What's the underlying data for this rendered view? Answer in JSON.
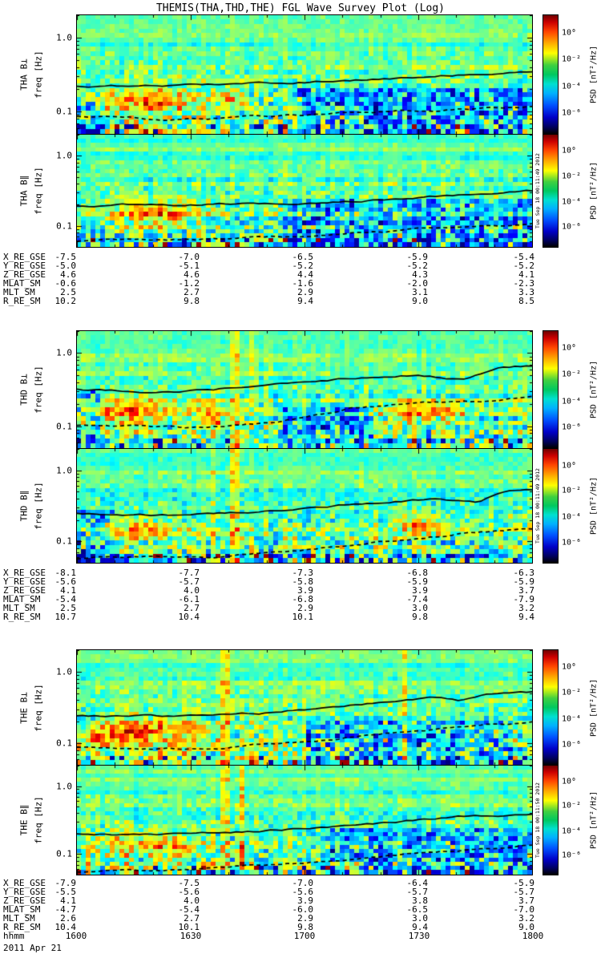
{
  "title": "THEMIS(THA,THD,THE) FGL Wave Survey Plot (Log)",
  "date_label": "2011 Apr 21",
  "freq_axis": {
    "label": "freq [Hz]",
    "ticks": [
      "1.0",
      "0.1"
    ]
  },
  "colorbar": {
    "label": "PSD [nT²/Hz]",
    "ticks": [
      "10⁰",
      "10⁻²",
      "10⁻⁴",
      "10⁻⁶"
    ]
  },
  "time_axis": {
    "label": "hhmm",
    "ticks": [
      "1600",
      "1630",
      "1700",
      "1730",
      "1800"
    ]
  },
  "timestamps": [
    "Tue Sep 18 00:11:49 2012",
    "Tue Sep 18 00:11:49 2012",
    "Tue Sep 18 00:11:50 2012"
  ],
  "groups": [
    {
      "sat": "THA",
      "ephemeris": [
        {
          "label": "X_RE_GSE",
          "values": [
            "-7.5",
            "-7.0",
            "-6.5",
            "-5.9",
            "-5.4"
          ]
        },
        {
          "label": "Y_RE_GSE",
          "values": [
            "-5.0",
            "-5.1",
            "-5.2",
            "-5.2",
            "-5.2"
          ]
        },
        {
          "label": "Z_RE_GSE",
          "values": [
            "4.6",
            "4.6",
            "4.4",
            "4.3",
            "4.1"
          ]
        },
        {
          "label": "MLAT_SM",
          "values": [
            "-0.6",
            "-1.2",
            "-1.6",
            "-2.0",
            "-2.3"
          ]
        },
        {
          "label": "MLT_SM",
          "values": [
            "2.5",
            "2.7",
            "2.9",
            "3.1",
            "3.3"
          ]
        },
        {
          "label": "R_RE_SM",
          "values": [
            "10.2",
            "9.8",
            "9.4",
            "9.0",
            "8.5"
          ]
        }
      ]
    },
    {
      "sat": "THD",
      "ephemeris": [
        {
          "label": "X_RE_GSE",
          "values": [
            "-8.1",
            "-7.7",
            "-7.3",
            "-6.8",
            "-6.3"
          ]
        },
        {
          "label": "Y_RE_GSE",
          "values": [
            "-5.6",
            "-5.7",
            "-5.8",
            "-5.9",
            "-5.9"
          ]
        },
        {
          "label": "Z_RE_GSE",
          "values": [
            "4.1",
            "4.0",
            "3.9",
            "3.9",
            "3.7"
          ]
        },
        {
          "label": "MLAT_SM",
          "values": [
            "-5.4",
            "-6.1",
            "-6.8",
            "-7.4",
            "-7.9"
          ]
        },
        {
          "label": "MLT_SM",
          "values": [
            "2.5",
            "2.7",
            "2.9",
            "3.0",
            "3.2"
          ]
        },
        {
          "label": "R_RE_SM",
          "values": [
            "10.7",
            "10.4",
            "10.1",
            "9.8",
            "9.4"
          ]
        }
      ]
    },
    {
      "sat": "THE",
      "ephemeris": [
        {
          "label": "X_RE_GSE",
          "values": [
            "-7.9",
            "-7.5",
            "-7.0",
            "-6.4",
            "-5.9"
          ]
        },
        {
          "label": "Y_RE_GSE",
          "values": [
            "-5.5",
            "-5.6",
            "-5.6",
            "-5.7",
            "-5.7"
          ]
        },
        {
          "label": "Z_RE_GSE",
          "values": [
            "4.1",
            "4.0",
            "3.9",
            "3.8",
            "3.7"
          ]
        },
        {
          "label": "MLAT_SM",
          "values": [
            "-4.7",
            "-5.4",
            "-6.0",
            "-6.5",
            "-7.0"
          ]
        },
        {
          "label": "MLT_SM",
          "values": [
            "2.6",
            "2.7",
            "2.9",
            "3.0",
            "3.2"
          ]
        },
        {
          "label": "R_RE_SM",
          "values": [
            "10.4",
            "10.1",
            "9.8",
            "9.4",
            "9.0"
          ]
        }
      ]
    }
  ],
  "chart_data": {
    "type": "heatmap",
    "subtype": "spectrogram",
    "title": "THEMIS(THA,THD,THE) FGL Wave Survey Plot (Log)",
    "x_axis": {
      "label": "hhmm",
      "date": "2011 Apr 21",
      "ticks": [
        "1600",
        "1630",
        "1700",
        "1730",
        "1800"
      ],
      "tick_interval_min": 30
    },
    "y_axis": {
      "label": "freq [Hz]",
      "scale": "log",
      "range_hz": [
        0.05,
        2.0
      ],
      "ticks": [
        1.0,
        0.1
      ]
    },
    "z_axis": {
      "label": "PSD [nT²/Hz]",
      "scale": "log",
      "ticks": [
        "10⁰",
        "10⁻²",
        "10⁻⁴",
        "10⁻⁶"
      ],
      "colormap": "rainbow"
    },
    "overlay_lines": {
      "solid": "black solid characteristic-frequency trace",
      "dashed": "black dashed characteristic-frequency trace"
    },
    "panels": [
      {
        "id": "tha-bperp",
        "label": "THA B⊥",
        "seed": 11,
        "solid": [
          [
            0,
            0.6
          ],
          [
            0.2,
            0.595
          ],
          [
            0.4,
            0.575
          ],
          [
            0.55,
            0.555
          ],
          [
            0.7,
            0.53
          ],
          [
            0.85,
            0.5
          ],
          [
            1,
            0.47
          ]
        ],
        "dashed": [
          [
            0,
            0.86
          ],
          [
            0.2,
            0.875
          ],
          [
            0.35,
            0.86
          ],
          [
            0.5,
            0.845
          ],
          [
            0.65,
            0.82
          ],
          [
            0.8,
            0.8
          ],
          [
            1,
            0.77
          ]
        ],
        "blobs": [
          {
            "x": 0.16,
            "y": 0.74,
            "w": 0.1,
            "h": 0.14,
            "amp": 0.3
          },
          {
            "x": 0.33,
            "y": 0.72,
            "w": 0.05,
            "h": 0.1,
            "amp": 0.18
          }
        ],
        "stripes": [],
        "dark": [
          {
            "x0": 0.48,
            "x1": 1,
            "y0": 0.62,
            "amp": 0.3
          },
          {
            "x0": 0,
            "x1": 0.06,
            "y0": 0.75,
            "amp": 0.3
          }
        ]
      },
      {
        "id": "tha-bpar",
        "label": "THA B∥",
        "seed": 12,
        "solid": [
          [
            0,
            0.63
          ],
          [
            0.3,
            0.62
          ],
          [
            0.5,
            0.61
          ],
          [
            0.7,
            0.57
          ],
          [
            0.85,
            0.53
          ],
          [
            1,
            0.5
          ]
        ],
        "dashed": [
          [
            0,
            0.95
          ],
          [
            0.3,
            0.93
          ],
          [
            0.5,
            0.9
          ],
          [
            0.7,
            0.86
          ],
          [
            0.85,
            0.82
          ],
          [
            1,
            0.79
          ]
        ],
        "blobs": [
          {
            "x": 0.17,
            "y": 0.72,
            "w": 0.09,
            "h": 0.12,
            "amp": 0.28
          }
        ],
        "stripes": [],
        "dark": [
          {
            "x0": 0.45,
            "x1": 1,
            "y0": 0.6,
            "amp": 0.3
          }
        ]
      },
      {
        "id": "thd-bperp",
        "label": "THD B⊥",
        "seed": 21,
        "solid": [
          [
            0,
            0.5
          ],
          [
            0.15,
            0.52
          ],
          [
            0.3,
            0.5
          ],
          [
            0.45,
            0.44
          ],
          [
            0.6,
            0.4
          ],
          [
            0.75,
            0.37
          ],
          [
            0.85,
            0.41
          ],
          [
            0.93,
            0.3
          ],
          [
            1,
            0.29
          ]
        ],
        "dashed": [
          [
            0,
            0.8
          ],
          [
            0.25,
            0.83
          ],
          [
            0.45,
            0.78
          ],
          [
            0.6,
            0.66
          ],
          [
            0.75,
            0.61
          ],
          [
            0.9,
            0.6
          ],
          [
            1,
            0.56
          ]
        ],
        "blobs": [
          {
            "x": 0.1,
            "y": 0.7,
            "w": 0.1,
            "h": 0.14,
            "amp": 0.28
          },
          {
            "x": 0.75,
            "y": 0.7,
            "w": 0.08,
            "h": 0.1,
            "amp": 0.3
          },
          {
            "x": 0.3,
            "y": 0.75,
            "w": 0.04,
            "h": 0.2,
            "amp": 0.2
          }
        ],
        "stripes": [
          {
            "x": 0.345,
            "w": 0.012,
            "amp": 0.2
          },
          {
            "x": 0.385,
            "w": 0.008,
            "amp": 0.15
          }
        ],
        "dark": [
          {
            "x0": 0,
            "x1": 0.05,
            "y0": 0.5,
            "amp": 0.3
          },
          {
            "x0": 0.45,
            "x1": 0.65,
            "y0": 0.65,
            "amp": 0.25
          }
        ]
      },
      {
        "id": "thd-bpar",
        "label": "THD B∥",
        "seed": 22,
        "solid": [
          [
            0,
            0.56
          ],
          [
            0.2,
            0.58
          ],
          [
            0.4,
            0.55
          ],
          [
            0.55,
            0.5
          ],
          [
            0.7,
            0.46
          ],
          [
            0.8,
            0.44
          ],
          [
            0.88,
            0.47
          ],
          [
            0.94,
            0.37
          ],
          [
            1,
            0.36
          ]
        ],
        "dashed": [
          [
            0,
            0.96
          ],
          [
            0.3,
            0.94
          ],
          [
            0.5,
            0.88
          ],
          [
            0.7,
            0.8
          ],
          [
            0.85,
            0.74
          ],
          [
            1,
            0.7
          ]
        ],
        "blobs": [
          {
            "x": 0.12,
            "y": 0.72,
            "w": 0.1,
            "h": 0.12,
            "amp": 0.22
          },
          {
            "x": 0.75,
            "y": 0.68,
            "w": 0.06,
            "h": 0.1,
            "amp": 0.22
          }
        ],
        "stripes": [
          {
            "x": 0.345,
            "w": 0.012,
            "amp": 0.22
          },
          {
            "x": 0.3,
            "w": 0.008,
            "amp": 0.15
          }
        ],
        "dark": [
          {
            "x0": 0,
            "x1": 0.08,
            "y0": 0.55,
            "amp": 0.3
          }
        ]
      },
      {
        "id": "the-bperp",
        "label": "THE B⊥",
        "seed": 31,
        "solid": [
          [
            0,
            0.57
          ],
          [
            0.2,
            0.575
          ],
          [
            0.4,
            0.55
          ],
          [
            0.55,
            0.5
          ],
          [
            0.68,
            0.45
          ],
          [
            0.78,
            0.41
          ],
          [
            0.84,
            0.44
          ],
          [
            0.9,
            0.38
          ],
          [
            1,
            0.36
          ]
        ],
        "dashed": [
          [
            0,
            0.85
          ],
          [
            0.3,
            0.855
          ],
          [
            0.5,
            0.8
          ],
          [
            0.7,
            0.72
          ],
          [
            0.85,
            0.67
          ],
          [
            1,
            0.63
          ]
        ],
        "blobs": [
          {
            "x": 0.15,
            "y": 0.72,
            "w": 0.11,
            "h": 0.13,
            "amp": 0.3
          },
          {
            "x": 0.05,
            "y": 0.78,
            "w": 0.04,
            "h": 0.1,
            "amp": 0.2
          }
        ],
        "stripes": [
          {
            "x": 0.33,
            "w": 0.01,
            "amp": 0.18
          },
          {
            "x": 0.72,
            "w": 0.008,
            "amp": 0.18
          }
        ],
        "dark": [
          {
            "x0": 0.5,
            "x1": 0.95,
            "y0": 0.62,
            "amp": 0.3
          }
        ]
      },
      {
        "id": "the-bpar",
        "label": "THE B∥",
        "seed": 32,
        "solid": [
          [
            0,
            0.62
          ],
          [
            0.2,
            0.635
          ],
          [
            0.4,
            0.6
          ],
          [
            0.55,
            0.56
          ],
          [
            0.7,
            0.52
          ],
          [
            0.85,
            0.47
          ],
          [
            1,
            0.44
          ]
        ],
        "dashed": [
          [
            0,
            0.98
          ],
          [
            0.3,
            0.94
          ],
          [
            0.5,
            0.89
          ],
          [
            0.7,
            0.83
          ],
          [
            0.85,
            0.77
          ],
          [
            1,
            0.73
          ]
        ],
        "blobs": [
          {
            "x": 0.15,
            "y": 0.74,
            "w": 0.1,
            "h": 0.12,
            "amp": 0.26
          }
        ],
        "stripes": [
          {
            "x": 0.33,
            "w": 0.01,
            "amp": 0.2
          },
          {
            "x": 0.36,
            "w": 0.006,
            "amp": 0.25
          }
        ],
        "dark": [
          {
            "x0": 0.55,
            "x1": 1,
            "y0": 0.6,
            "amp": 0.25
          }
        ]
      }
    ]
  }
}
